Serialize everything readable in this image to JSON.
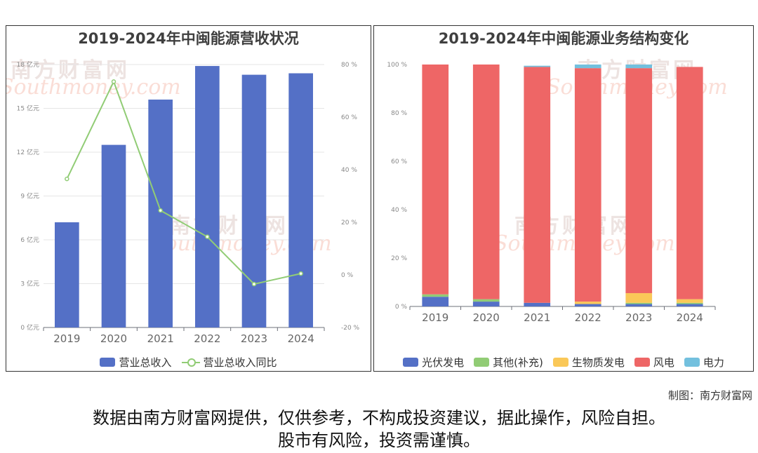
{
  "left": {
    "title": "2019-2024年中闽能源营收状况",
    "legend": [
      {
        "label": "营业总收入",
        "color": "#5470c6",
        "kind": "bar"
      },
      {
        "label": "营业总收入同比",
        "color": "#91cc75",
        "kind": "line"
      }
    ]
  },
  "right": {
    "title": "2019-2024年中闽能源业务结构变化",
    "legend": [
      {
        "label": "光伏发电",
        "color": "#5470c6"
      },
      {
        "label": "其他(补充)",
        "color": "#91cc75"
      },
      {
        "label": "生物质发电",
        "color": "#fac858"
      },
      {
        "label": "风电",
        "color": "#ee6666"
      },
      {
        "label": "电力",
        "color": "#73c0de"
      }
    ]
  },
  "watermark": {
    "cn": "南方财富网",
    "en": "Southmoney.com"
  },
  "credit": "制图：南方财富网",
  "disclaimer": {
    "line1": "数据由南方财富网提供，仅供参考，不构成投资建议，据此操作，风险自担。",
    "line2": "股市有风险，投资需谨慎。"
  },
  "chart_data": [
    {
      "type": "bar",
      "title": "2019-2024年中闽能源营收状况",
      "categories": [
        "2019",
        "2020",
        "2021",
        "2022",
        "2023",
        "2024"
      ],
      "series": [
        {
          "name": "营业总收入",
          "type": "bar",
          "axis": "left",
          "values": [
            7.2,
            12.5,
            15.6,
            17.9,
            17.3,
            17.4
          ]
        },
        {
          "name": "营业总收入同比",
          "type": "line",
          "axis": "right",
          "values": [
            36.5,
            73.5,
            24.5,
            14.5,
            -3.5,
            0.5
          ]
        }
      ],
      "y_left": {
        "min": 0,
        "max": 18,
        "ticks": [
          0,
          3,
          6,
          9,
          12,
          15,
          18
        ],
        "tick_labels": [
          "0 亿元",
          "3 亿元",
          "6 亿元",
          "9 亿元",
          "12 亿元",
          "15 亿元",
          "18 亿元"
        ]
      },
      "y_right": {
        "min": -20,
        "max": 80,
        "ticks": [
          -20,
          0,
          20,
          40,
          60,
          80
        ],
        "tick_labels": [
          "-20 %",
          "0 %",
          "20 %",
          "40 %",
          "60 %",
          "80 %"
        ]
      },
      "grid": true,
      "legend_position": "bottom"
    },
    {
      "type": "bar",
      "stacked": true,
      "title": "2019-2024年中闽能源业务结构变化",
      "categories": [
        "2019",
        "2020",
        "2021",
        "2022",
        "2023",
        "2024"
      ],
      "series": [
        {
          "name": "光伏发电",
          "values": [
            4,
            2,
            1.5,
            1,
            1,
            1
          ]
        },
        {
          "name": "其他(补充)",
          "values": [
            1,
            1,
            0,
            0,
            0.5,
            0.5
          ]
        },
        {
          "name": "生物质发电",
          "values": [
            0,
            0,
            0,
            1,
            4,
            1.5
          ]
        },
        {
          "name": "风电",
          "values": [
            95,
            97,
            97.5,
            96.5,
            93,
            96
          ]
        },
        {
          "name": "电力",
          "values": [
            0,
            0,
            0.5,
            1.5,
            1.5,
            0
          ]
        }
      ],
      "y": {
        "min": 0,
        "max": 100,
        "ticks": [
          0,
          20,
          40,
          60,
          80,
          100
        ],
        "tick_labels": [
          "0 %",
          "20 %",
          "40 %",
          "60 %",
          "80 %",
          "100 %"
        ]
      },
      "grid": false,
      "legend_position": "bottom"
    }
  ]
}
